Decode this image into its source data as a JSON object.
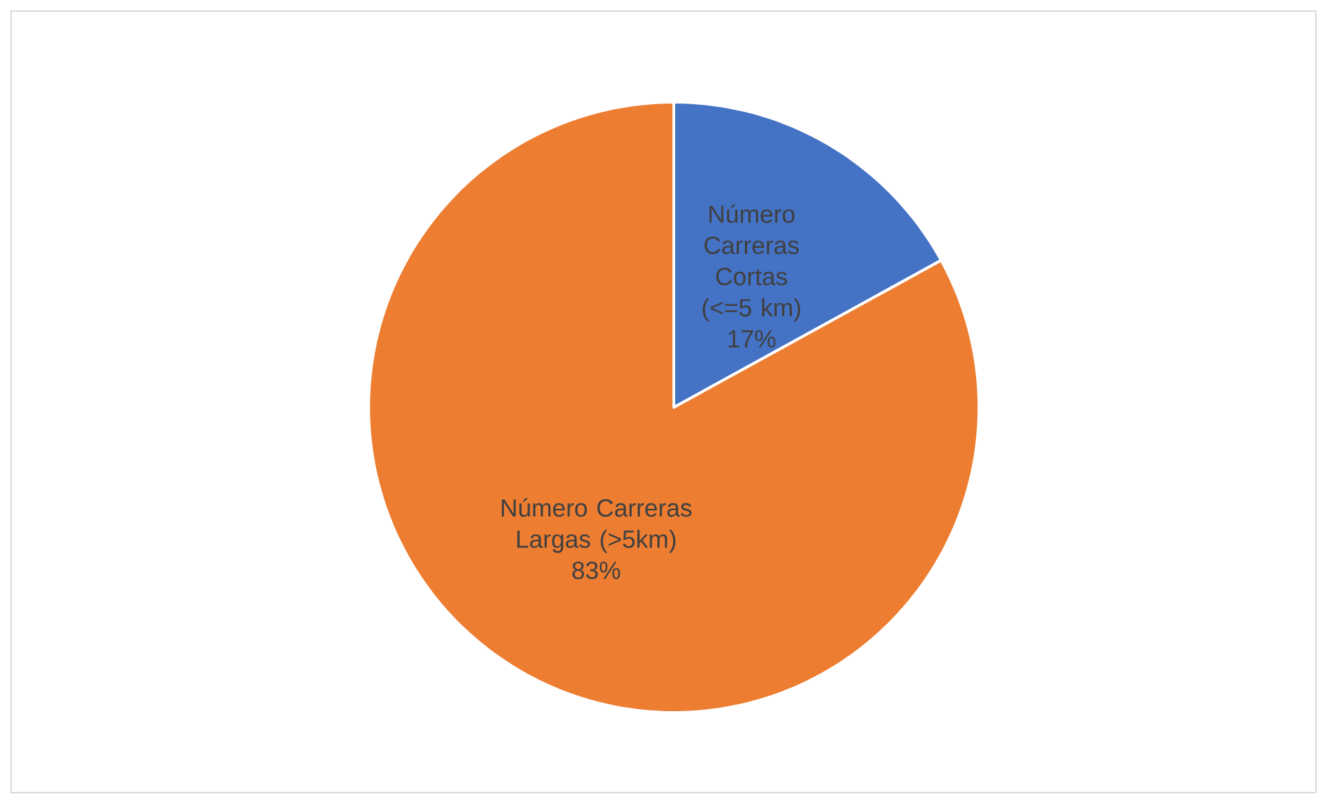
{
  "chart_data": {
    "type": "pie",
    "categories": [
      "Número Carreras Cortas (<=5 km)",
      "Número Carreras Largas (>5km)"
    ],
    "values": [
      17,
      83
    ],
    "colors": [
      "#4472c4",
      "#ed7d31"
    ],
    "value_labels": [
      "17%",
      "83%"
    ]
  }
}
